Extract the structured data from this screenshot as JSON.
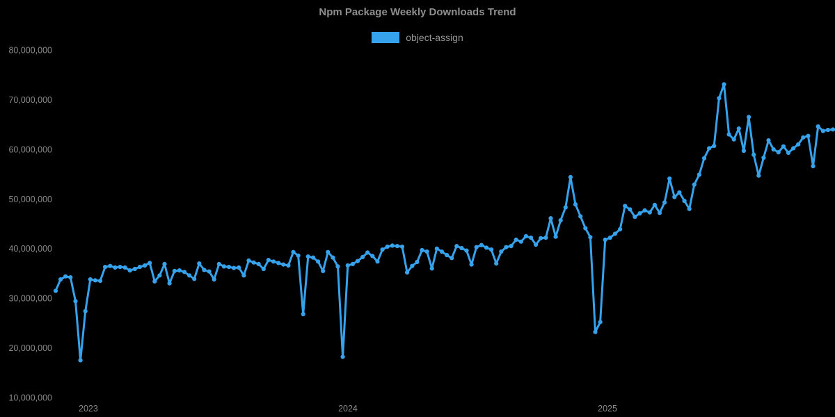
{
  "page": {
    "background": "#000000"
  },
  "header": {
    "title": "Npm Package Weekly Downloads Trend"
  },
  "chart_data": {
    "type": "line",
    "title": "Npm Package Weekly Downloads Trend",
    "grid": false,
    "legend_position": "top",
    "x_unit": "week",
    "x_note": "weekly samples from mid-Nov 2022 through mid-Nov 2025; only year ticks labeled",
    "x_axis": {
      "ticks": [
        {
          "label": "2023",
          "pos": 0.042
        },
        {
          "label": "2024",
          "pos": 0.376
        },
        {
          "label": "2025",
          "pos": 0.71
        }
      ]
    },
    "y_axis": {
      "min": 10000000,
      "max": 80000000,
      "tick_step": 10000000,
      "tick_values": [
        10000000,
        20000000,
        30000000,
        40000000,
        50000000,
        60000000,
        70000000,
        80000000
      ],
      "tick_labels": [
        "10,000,000",
        "20,000,000",
        "30,000,000",
        "40,000,000",
        "50,000,000",
        "60,000,000",
        "70,000,000",
        "80,000,000"
      ]
    },
    "series": [
      {
        "name": "object-assign",
        "color": "#36a2eb",
        "point_style": "circle",
        "values": [
          31500000,
          33800000,
          34400000,
          34200000,
          29400000,
          17500000,
          27400000,
          33800000,
          33600000,
          33500000,
          36300000,
          36500000,
          36200000,
          36300000,
          36200000,
          35600000,
          35900000,
          36300000,
          36600000,
          37100000,
          33400000,
          34600000,
          36900000,
          33000000,
          35500000,
          35600000,
          35300000,
          34600000,
          33900000,
          37000000,
          35700000,
          35400000,
          33800000,
          36900000,
          36400000,
          36300000,
          36100000,
          36200000,
          34600000,
          37600000,
          37200000,
          36900000,
          35900000,
          37700000,
          37400000,
          37100000,
          36800000,
          36600000,
          39300000,
          38600000,
          26800000,
          38400000,
          38200000,
          37400000,
          35500000,
          39300000,
          38200000,
          36400000,
          18200000,
          36600000,
          36900000,
          37500000,
          38300000,
          39200000,
          38500000,
          37400000,
          39800000,
          40400000,
          40600000,
          40500000,
          40400000,
          35200000,
          36500000,
          37300000,
          39700000,
          39400000,
          36000000,
          40000000,
          39400000,
          38700000,
          38100000,
          40500000,
          40100000,
          39600000,
          36800000,
          40300000,
          40700000,
          40200000,
          39800000,
          37000000,
          39400000,
          40300000,
          40500000,
          41800000,
          41400000,
          42500000,
          42200000,
          40800000,
          42100000,
          42200000,
          46100000,
          42400000,
          45700000,
          48300000,
          54400000,
          48900000,
          46500000,
          44100000,
          42300000,
          23200000,
          25200000,
          41800000,
          42200000,
          43000000,
          43900000,
          48600000,
          47900000,
          46400000,
          47100000,
          47700000,
          47300000,
          48800000,
          47200000,
          49300000,
          54100000,
          50400000,
          51300000,
          49600000,
          48000000,
          52900000,
          54900000,
          58200000,
          60200000,
          60700000,
          70300000,
          73100000,
          63000000,
          62000000,
          64200000,
          59700000,
          66500000,
          58900000,
          54700000,
          58300000,
          61800000,
          60000000,
          59400000,
          60600000,
          59300000,
          60200000,
          61000000,
          62400000,
          62700000,
          56600000,
          64600000,
          63700000,
          63900000,
          64000000
        ]
      }
    ]
  }
}
